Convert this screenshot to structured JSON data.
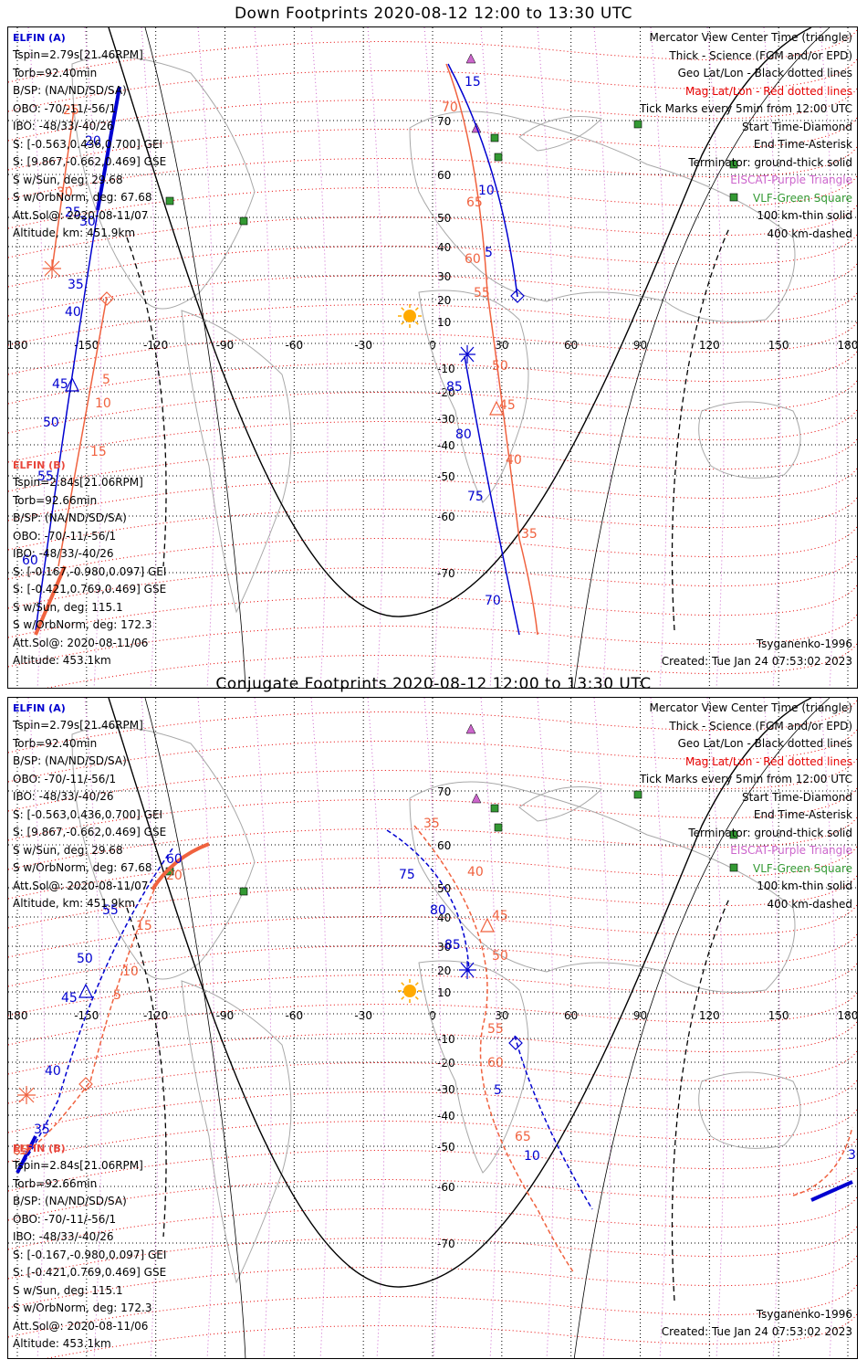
{
  "panels": [
    {
      "title": "Down Footprints 2020-08-12 12:00 to 13:30 UTC",
      "elfin_a": {
        "name": "ELFIN (A)",
        "lines": [
          "Tspin=2.79s[21.46RPM]",
          "Torb=92.40min",
          "B/SP: (NA/ND/SD/SA)",
          "OBO: -70/-11/-56/1",
          "IBO: -48/33/-40/26",
          "S: [-0.563,0.436,0.700] GEI",
          "S: [9.867,-0.662,0.469] GSE",
          "S w/Sun, deg: 29.68",
          "S w/OrbNorm, deg: 67.68",
          "Att.Sol@: 2020-08-11/07",
          "Altitude, km: 451.9km"
        ]
      },
      "elfin_b": {
        "name": "ELFIN (B)",
        "lines": [
          "Tspin=2.84s[21.06RPM]",
          "Torb=92.66min",
          "B/SP: (NA/ND/SD/SA)",
          "OBO: -70/-11/-56/1",
          "IBO: -48/33/-40/26",
          "S: [-0.167,-0.980,0.097] GEI",
          "S: [-0.421,0.769,0.469] GSE",
          "S w/Sun, deg: 115.1",
          "S w/OrbNorm, deg: 172.3",
          "Att.Sol@: 2020-08-11/06",
          "Altitude: 453.1km"
        ]
      },
      "legend": [
        {
          "text": "Mercator View Center Time (triangle)",
          "color": "#000000"
        },
        {
          "text": "Thick - Science (FGM and/or EPD)",
          "color": "#000000"
        },
        {
          "text": "Geo Lat/Lon - Black dotted lines",
          "color": "#000000"
        },
        {
          "text": "Mag Lat/Lon - Red dotted lines",
          "color": "#e60000"
        },
        {
          "text": "Tick Marks every 5min from 12:00 UTC",
          "color": "#000000"
        },
        {
          "text": "Start Time-Diamond",
          "color": "#000000"
        },
        {
          "text": "End Time-Asterisk",
          "color": "#000000"
        },
        {
          "text": "Terminator: ground-thick solid",
          "color": "#000000"
        },
        {
          "text": "EISCAT-Purple Triangle",
          "color": "#cc66cc"
        },
        {
          "text": "VLF-Green Square",
          "color": "#339933"
        },
        {
          "text": "100 km-thin solid",
          "color": "#000000"
        },
        {
          "text": "400 km-dashed",
          "color": "#000000"
        }
      ],
      "model": "Tsyganenko-1996",
      "created": "Created: Tue Jan 24 07:53:02 2023"
    },
    {
      "title": "Conjugate Footprints 2020-08-12 12:00 to 13:30 UTC",
      "elfin_a": {
        "name": "ELFIN (A)",
        "lines": [
          "Tspin=2.79s[21.46RPM]",
          "Torb=92.40min",
          "B/SP: (NA/ND/SD/SA)",
          "OBO: -70/-11/-56/1",
          "IBO: -48/33/-40/26",
          "S: [-0.563,0.436,0.700] GEI",
          "S: [9.867,-0.662,0.469] GSE",
          "S w/Sun, deg: 29.68",
          "S w/OrbNorm, deg: 67.68",
          "Att.Sol@: 2020-08-11/07",
          "Altitude, km: 451.9km"
        ]
      },
      "elfin_b": {
        "name": "ELFIN (B)",
        "lines": [
          "Tspin=2.84s[21.06RPM]",
          "Torb=92.66min",
          "B/SP: (NA/ND/SD/SA)",
          "OBO: -70/-11/-56/1",
          "IBO: -48/33/-40/26",
          "S: [-0.167,-0.980,0.097] GEI",
          "S: [-0.421,0.769,0.469] GSE",
          "S w/Sun, deg: 115.1",
          "S w/OrbNorm, deg: 172.3",
          "Att.Sol@: 2020-08-11/06",
          "Altitude: 453.1km"
        ]
      },
      "legend": [
        {
          "text": "Mercator View Center Time (triangle)",
          "color": "#000000"
        },
        {
          "text": "Thick - Science (FGM and/or EPD)",
          "color": "#000000"
        },
        {
          "text": "Geo Lat/Lon - Black dotted lines",
          "color": "#000000"
        },
        {
          "text": "Mag Lat/Lon - Red dotted lines",
          "color": "#e60000"
        },
        {
          "text": "Tick Marks every 5min from 12:00 UTC",
          "color": "#000000"
        },
        {
          "text": "Start Time-Diamond",
          "color": "#000000"
        },
        {
          "text": "End Time-Asterisk",
          "color": "#000000"
        },
        {
          "text": "Terminator: ground-thick solid",
          "color": "#000000"
        },
        {
          "text": "EISCAT-Purple Triangle",
          "color": "#cc66cc"
        },
        {
          "text": "VLF-Green Square",
          "color": "#339933"
        },
        {
          "text": "100 km-thin solid",
          "color": "#000000"
        },
        {
          "text": "400 km-dashed",
          "color": "#000000"
        }
      ],
      "model": "Tsyganenko-1996",
      "created": "Created: Tue Jan 24 07:53:02 2023"
    }
  ],
  "lon_ticks": [
    "180",
    "-150",
    "-120",
    "-90",
    "-60",
    "-30",
    "0",
    "30",
    "60",
    "90",
    "120",
    "150",
    "180"
  ],
  "lat_ticks": [
    "70",
    "60",
    "50",
    "40",
    "30",
    "20",
    "10",
    "-10",
    "-20",
    "-30",
    "-40",
    "-50",
    "-60",
    "-70"
  ],
  "colors": {
    "elfin_a": "#0000d0",
    "elfin_b": "#f0623f",
    "sun": "#ffaa00",
    "eiscat": "#cc66cc",
    "vlf": "#339933"
  },
  "down_track_a_labels": [
    "15",
    "10",
    "5",
    "20",
    "25",
    "30",
    "35",
    "40",
    "45",
    "50",
    "55",
    "60",
    "85",
    "80",
    "75",
    "70"
  ],
  "down_track_b_labels": [
    "70",
    "65",
    "60",
    "55",
    "50",
    "45",
    "40",
    "35",
    "5",
    "10",
    "15",
    "30",
    "25"
  ],
  "conj_track_a_labels": [
    "75",
    "80",
    "85",
    "60",
    "55",
    "50",
    "45",
    "40",
    "35",
    "5",
    "10",
    "30"
  ],
  "conj_track_b_labels": [
    "35",
    "40",
    "45",
    "50",
    "55",
    "60",
    "65",
    "20",
    "15",
    "10",
    "5",
    "85"
  ]
}
